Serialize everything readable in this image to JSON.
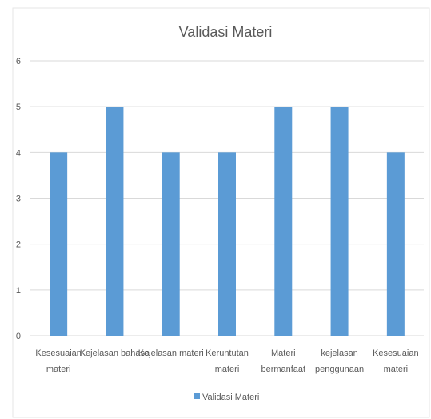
{
  "chart_data": {
    "type": "bar",
    "title": "Validasi Materi",
    "categories": [
      [
        "Kesesuaian",
        "materi"
      ],
      [
        "Kejelasan bahasa"
      ],
      [
        "Kejelasan materi"
      ],
      [
        "Keruntutan",
        "materi"
      ],
      [
        "Materi",
        "bermanfaat"
      ],
      [
        "kejelasan",
        "penggunaan"
      ],
      [
        "Kesesuaian",
        "materi"
      ]
    ],
    "series": [
      {
        "name": "Validasi Materi",
        "values": [
          4,
          5,
          4,
          4,
          5,
          5,
          4
        ],
        "color": "#5B9BD5"
      }
    ],
    "ylim": [
      0,
      6
    ],
    "yticks": [
      0,
      1,
      2,
      3,
      4,
      5,
      6
    ],
    "grid": true,
    "legend": "bottom",
    "gridline_color": "#D9D9D9",
    "text_color": "#595959"
  }
}
